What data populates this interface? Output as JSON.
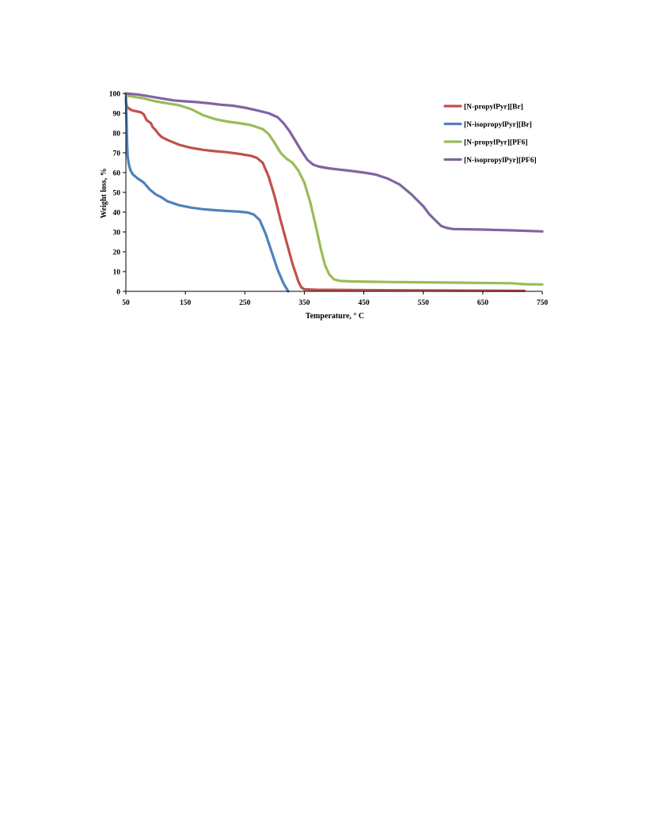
{
  "chart_data": {
    "type": "line",
    "xlabel": "Temperature, ° C",
    "ylabel": "Weight loss, %",
    "xlim": [
      50,
      750
    ],
    "ylim": [
      0,
      100
    ],
    "x_ticks": [
      "50",
      "150",
      "250",
      "350",
      "450",
      "550",
      "650",
      "750"
    ],
    "y_ticks": [
      "0",
      "10",
      "20",
      "30",
      "40",
      "50",
      "60",
      "70",
      "80",
      "90",
      "100"
    ],
    "grid": false,
    "legend_position": "top-right",
    "series": [
      {
        "name": "[N-propylPyr][Br]",
        "color": "#c0504d",
        "points": [
          [
            50,
            96
          ],
          [
            52,
            93
          ],
          [
            60,
            91.5
          ],
          [
            75,
            90.5
          ],
          [
            80,
            89.5
          ],
          [
            85,
            86.5
          ],
          [
            92,
            85
          ],
          [
            95,
            83
          ],
          [
            100,
            81.5
          ],
          [
            105,
            79.5
          ],
          [
            110,
            78
          ],
          [
            120,
            76.5
          ],
          [
            140,
            74
          ],
          [
            160,
            72.5
          ],
          [
            180,
            71.5
          ],
          [
            200,
            70.8
          ],
          [
            220,
            70.3
          ],
          [
            240,
            69.5
          ],
          [
            260,
            68.5
          ],
          [
            270,
            67.5
          ],
          [
            280,
            65
          ],
          [
            290,
            58
          ],
          [
            300,
            48
          ],
          [
            310,
            36
          ],
          [
            320,
            25
          ],
          [
            330,
            14
          ],
          [
            340,
            5
          ],
          [
            345,
            2
          ],
          [
            350,
            1
          ],
          [
            370,
            0.8
          ],
          [
            450,
            0.6
          ],
          [
            600,
            0.4
          ],
          [
            720,
            0.3
          ]
        ]
      },
      {
        "name": "[N-isopropylPyr][Br]",
        "color": "#4f81bd",
        "points": [
          [
            50,
            100
          ],
          [
            51,
            88
          ],
          [
            52,
            75
          ],
          [
            53,
            68
          ],
          [
            55,
            64
          ],
          [
            58,
            61
          ],
          [
            62,
            59
          ],
          [
            70,
            57
          ],
          [
            80,
            55
          ],
          [
            90,
            51.5
          ],
          [
            100,
            49
          ],
          [
            110,
            47.5
          ],
          [
            120,
            45.5
          ],
          [
            140,
            43.5
          ],
          [
            160,
            42.3
          ],
          [
            180,
            41.5
          ],
          [
            200,
            41
          ],
          [
            220,
            40.6
          ],
          [
            240,
            40.3
          ],
          [
            255,
            39.8
          ],
          [
            265,
            38.8
          ],
          [
            275,
            36
          ],
          [
            285,
            29
          ],
          [
            295,
            20
          ],
          [
            305,
            11
          ],
          [
            315,
            4
          ],
          [
            323,
            0
          ]
        ]
      },
      {
        "name": "[N-propylPyr][PF6]",
        "color": "#9bbb59",
        "points": [
          [
            50,
            99
          ],
          [
            60,
            98.5
          ],
          [
            80,
            97.5
          ],
          [
            100,
            96
          ],
          [
            120,
            95
          ],
          [
            140,
            94
          ],
          [
            160,
            92
          ],
          [
            180,
            89
          ],
          [
            200,
            87
          ],
          [
            220,
            85.8
          ],
          [
            240,
            85
          ],
          [
            260,
            84
          ],
          [
            280,
            82
          ],
          [
            290,
            79.5
          ],
          [
            300,
            75
          ],
          [
            310,
            70
          ],
          [
            320,
            67
          ],
          [
            330,
            65
          ],
          [
            340,
            61
          ],
          [
            350,
            55
          ],
          [
            360,
            45
          ],
          [
            370,
            32
          ],
          [
            378,
            21
          ],
          [
            385,
            13
          ],
          [
            392,
            8.5
          ],
          [
            400,
            6
          ],
          [
            410,
            5.3
          ],
          [
            430,
            5
          ],
          [
            500,
            4.7
          ],
          [
            600,
            4.4
          ],
          [
            700,
            4.1
          ],
          [
            720,
            3.6
          ],
          [
            750,
            3.5
          ]
        ]
      },
      {
        "name": "[N-isopropylPyr][PF6]",
        "color": "#8064a2",
        "points": [
          [
            50,
            100
          ],
          [
            70,
            99.5
          ],
          [
            90,
            98.5
          ],
          [
            110,
            97.5
          ],
          [
            130,
            96.5
          ],
          [
            150,
            96
          ],
          [
            170,
            95.6
          ],
          [
            190,
            95
          ],
          [
            210,
            94.3
          ],
          [
            230,
            93.8
          ],
          [
            250,
            92.8
          ],
          [
            270,
            91.5
          ],
          [
            290,
            90
          ],
          [
            305,
            88
          ],
          [
            315,
            85
          ],
          [
            325,
            81
          ],
          [
            335,
            76
          ],
          [
            345,
            71
          ],
          [
            355,
            66.5
          ],
          [
            365,
            64
          ],
          [
            375,
            63
          ],
          [
            390,
            62.2
          ],
          [
            410,
            61.5
          ],
          [
            430,
            60.8
          ],
          [
            450,
            60
          ],
          [
            470,
            59
          ],
          [
            490,
            57
          ],
          [
            510,
            54
          ],
          [
            530,
            49
          ],
          [
            550,
            43
          ],
          [
            560,
            39
          ],
          [
            570,
            36
          ],
          [
            580,
            33
          ],
          [
            590,
            32
          ],
          [
            600,
            31.5
          ],
          [
            650,
            31.2
          ],
          [
            700,
            30.8
          ],
          [
            750,
            30.3
          ]
        ]
      }
    ]
  }
}
